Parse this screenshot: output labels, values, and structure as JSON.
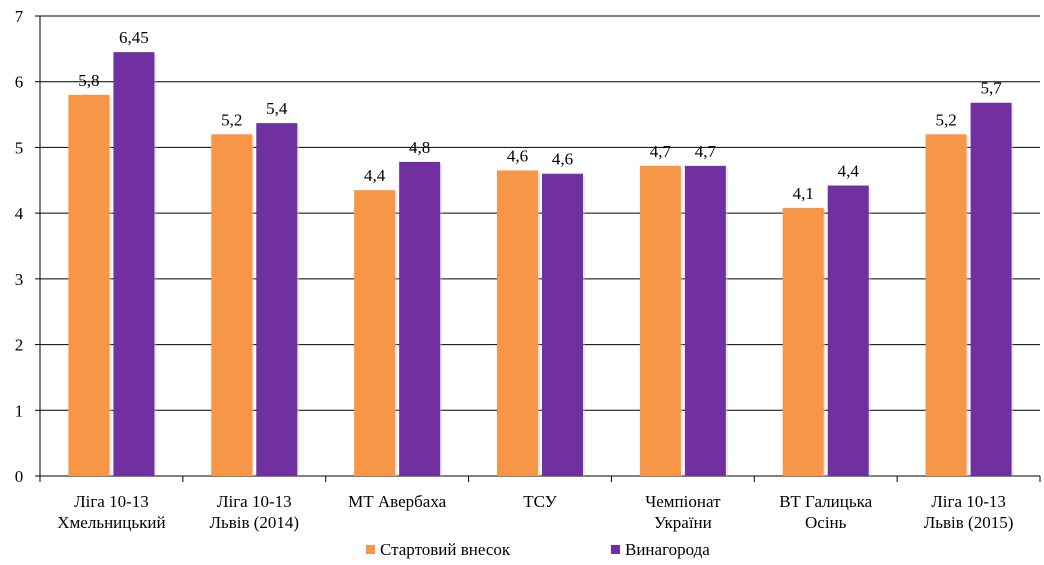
{
  "chart_data": {
    "type": "bar",
    "title": "",
    "xlabel": "",
    "ylabel": "",
    "ylim": [
      0,
      7
    ],
    "yticks": [
      0,
      1,
      2,
      3,
      4,
      5,
      6,
      7
    ],
    "grid": true,
    "legend_position": "bottom",
    "categories": [
      [
        "Ліга 10-13",
        "Хмельницький"
      ],
      [
        "Ліга 10-13",
        "Львів (2014)"
      ],
      [
        "МТ Авербаха"
      ],
      [
        "ТСУ"
      ],
      [
        "Чемпіонат",
        "України"
      ],
      [
        "ВТ Галицька",
        "Осінь"
      ],
      [
        "Ліга 10-13",
        "Львів (2015)"
      ]
    ],
    "series": [
      {
        "name": "Стартовий внесок",
        "color": "#f79646",
        "values": [
          5.8,
          5.2,
          4.35,
          4.65,
          4.72,
          4.08,
          5.2
        ],
        "labels": [
          "5,8",
          "5,2",
          "4,4",
          "4,6",
          "4,7",
          "4,1",
          "5,2"
        ]
      },
      {
        "name": "Винагорода",
        "color": "#7030a0",
        "values": [
          6.45,
          5.37,
          4.78,
          4.6,
          4.72,
          4.42,
          5.68
        ],
        "labels": [
          "6,45",
          "5,4",
          "4,8",
          "4,6",
          "4,7",
          "4,4",
          "5,7"
        ]
      }
    ]
  }
}
